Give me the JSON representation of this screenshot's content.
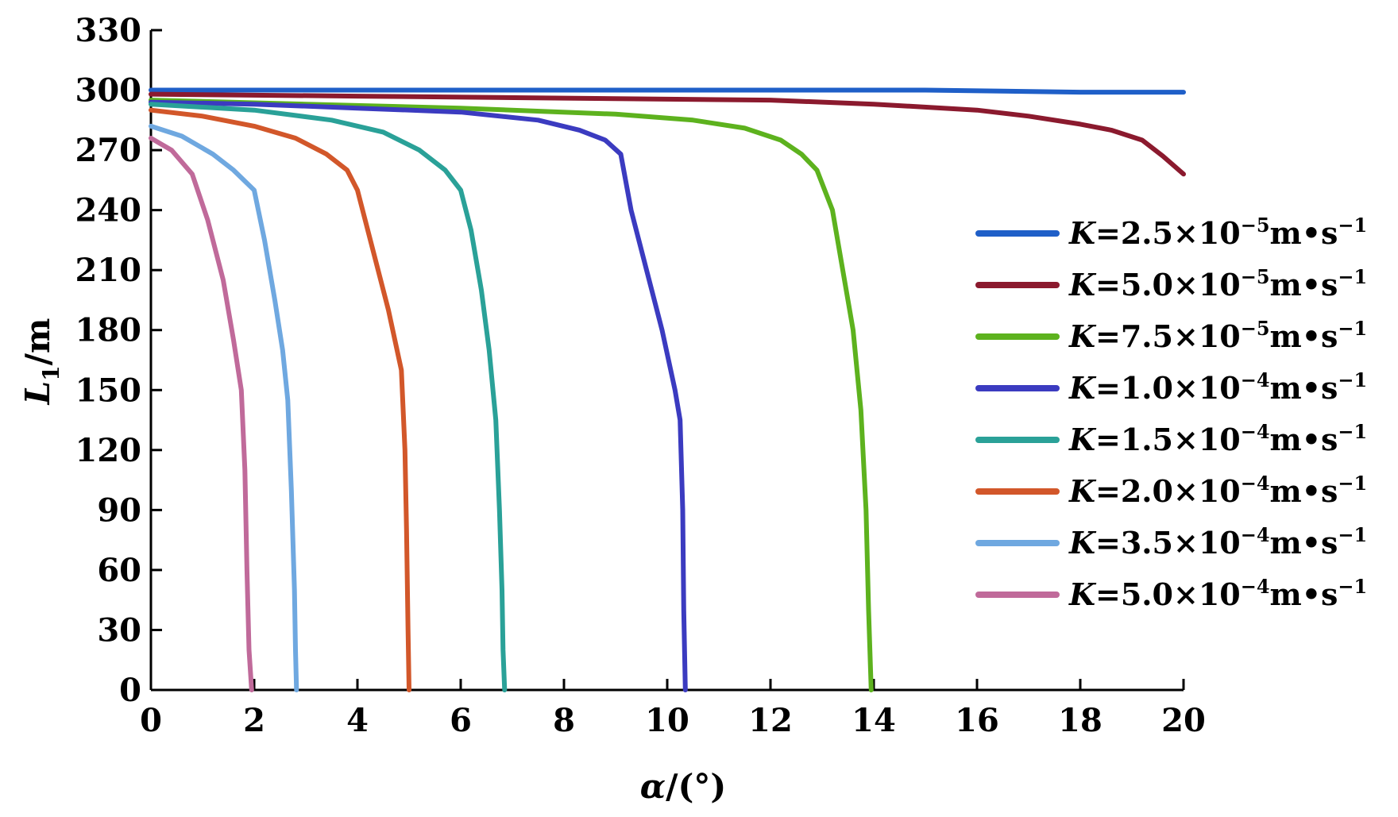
{
  "chart_data": {
    "type": "line",
    "xlabel": {
      "var": "α",
      "rest": "/(°)"
    },
    "ylabel": {
      "var": "L",
      "sub": "1",
      "rest": "/m"
    },
    "xlim": [
      0,
      20
    ],
    "ylim": [
      0,
      330
    ],
    "xticks": [
      0,
      2,
      4,
      6,
      8,
      10,
      12,
      14,
      16,
      18,
      20
    ],
    "yticks": [
      0,
      30,
      60,
      90,
      120,
      150,
      180,
      210,
      240,
      270,
      300,
      330
    ],
    "grid": false,
    "legend_position": "right",
    "series": [
      {
        "name": "K=2.5×10⁻⁵m•s⁻¹",
        "label": {
          "var": "K",
          "eq": "=2.5×10",
          "exp": "−5",
          "unit": "m•s",
          "uexp": "−1"
        },
        "color": "#1f5fc8",
        "x": [
          0,
          5,
          10,
          15,
          18,
          20
        ],
        "y": [
          300,
          300,
          300,
          300,
          299,
          299
        ]
      },
      {
        "name": "K=5.0×10⁻⁵m•s⁻¹",
        "label": {
          "var": "K",
          "eq": "=5.0×10",
          "exp": "−5",
          "unit": "m•s",
          "uexp": "−1"
        },
        "color": "#8b1a2e",
        "x": [
          0,
          4,
          8,
          12,
          14,
          16,
          17,
          18,
          18.6,
          19.2,
          19.6,
          20
        ],
        "y": [
          298,
          297,
          296,
          295,
          293,
          290,
          287,
          283,
          280,
          275,
          267,
          258
        ]
      },
      {
        "name": "K=7.5×10⁻⁵m•s⁻¹",
        "label": {
          "var": "K",
          "eq": "=7.5×10",
          "exp": "−5",
          "unit": "m•s",
          "uexp": "−1"
        },
        "color": "#5db21e",
        "x": [
          0,
          3,
          6,
          9,
          10.5,
          11.5,
          12.2,
          12.6,
          12.9,
          13.2,
          13.4,
          13.6,
          13.75,
          13.85,
          13.9,
          13.95
        ],
        "y": [
          295,
          293,
          291,
          288,
          285,
          281,
          275,
          268,
          260,
          240,
          210,
          180,
          140,
          90,
          40,
          0
        ]
      },
      {
        "name": "K=1.0×10⁻⁴m•s⁻¹",
        "label": {
          "var": "K",
          "eq": "=1.0×10",
          "exp": "−4",
          "unit": "m•s",
          "uexp": "−1"
        },
        "color": "#3b3bc0",
        "x": [
          0,
          2,
          4,
          6,
          7.5,
          8.3,
          8.8,
          9.1,
          9.3,
          9.6,
          9.9,
          10.15,
          10.25,
          10.3,
          10.32,
          10.35
        ],
        "y": [
          294,
          293,
          291,
          289,
          285,
          280,
          275,
          268,
          240,
          210,
          180,
          150,
          135,
          90,
          40,
          0
        ]
      },
      {
        "name": "K=1.5×10⁻⁴m•s⁻¹",
        "label": {
          "var": "K",
          "eq": "=1.5×10",
          "exp": "−4",
          "unit": "m•s",
          "uexp": "−1"
        },
        "color": "#2aa198",
        "x": [
          0,
          2,
          3.5,
          4.5,
          5.2,
          5.7,
          6.0,
          6.2,
          6.4,
          6.55,
          6.68,
          6.75,
          6.8,
          6.82,
          6.85
        ],
        "y": [
          293,
          290,
          285,
          279,
          270,
          260,
          250,
          230,
          200,
          170,
          135,
          90,
          50,
          20,
          0
        ]
      },
      {
        "name": "K=2.0×10⁻⁴m•s⁻¹",
        "label": {
          "var": "K",
          "eq": "=2.0×10",
          "exp": "−4",
          "unit": "m•s",
          "uexp": "−1"
        },
        "color": "#d2572a",
        "x": [
          0,
          1,
          2,
          2.8,
          3.4,
          3.8,
          4.0,
          4.3,
          4.6,
          4.85,
          4.92,
          4.95,
          4.98,
          5.0
        ],
        "y": [
          290,
          287,
          282,
          276,
          268,
          260,
          250,
          220,
          190,
          160,
          120,
          80,
          30,
          0
        ]
      },
      {
        "name": "K=3.5×10⁻⁴m•s⁻¹",
        "label": {
          "var": "K",
          "eq": "=3.5×10",
          "exp": "−4",
          "unit": "m•s",
          "uexp": "−1"
        },
        "color": "#6fa8e0",
        "x": [
          0,
          0.6,
          1.2,
          1.6,
          2.0,
          2.2,
          2.4,
          2.55,
          2.65,
          2.72,
          2.78,
          2.8,
          2.82
        ],
        "y": [
          282,
          277,
          268,
          260,
          250,
          225,
          195,
          170,
          145,
          100,
          50,
          20,
          0
        ]
      },
      {
        "name": "K=5.0×10⁻⁴m•s⁻¹",
        "label": {
          "var": "K",
          "eq": "=5.0×10",
          "exp": "−4",
          "unit": "m•s",
          "uexp": "−1"
        },
        "color": "#c06a9a",
        "x": [
          0,
          0.4,
          0.8,
          1.1,
          1.4,
          1.6,
          1.75,
          1.82,
          1.86,
          1.9,
          1.95
        ],
        "y": [
          276,
          270,
          258,
          235,
          205,
          175,
          150,
          110,
          60,
          20,
          0
        ]
      }
    ]
  }
}
